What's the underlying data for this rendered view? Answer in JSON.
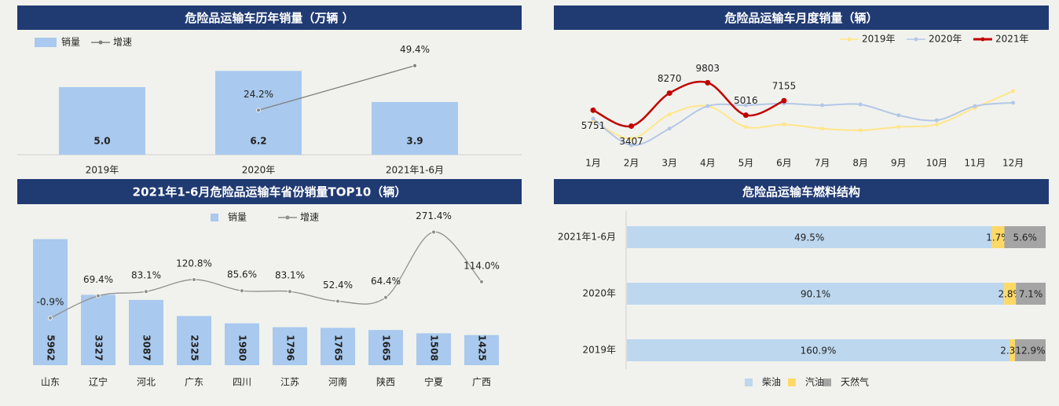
{
  "chart_data": [
    {
      "type": "combo",
      "title": "危险品运输车历年销量（万辆 ）",
      "categories": [
        "2019年",
        "2020年",
        "2021年1-6月"
      ],
      "series": [
        {
          "name": "销量",
          "type": "bar",
          "color": "#a9c9ee",
          "values": [
            5.0,
            6.2,
            3.9
          ],
          "value_labels": [
            "5.0",
            "6.2",
            "3.9"
          ]
        },
        {
          "name": "增速",
          "type": "line",
          "axis": "y2",
          "color": "#808080",
          "values": [
            null,
            24.2,
            49.4
          ],
          "value_labels": [
            null,
            "24.2%",
            "49.4%"
          ]
        }
      ],
      "ylim": [
        0,
        6.8
      ],
      "y2lim": [
        -1,
        51
      ]
    },
    {
      "type": "line",
      "title": "危险品运输车月度销量（辆）",
      "categories": [
        "1月",
        "2月",
        "3月",
        "4月",
        "5月",
        "6月",
        "7月",
        "8月",
        "9月",
        "10月",
        "11月",
        "12月"
      ],
      "series": [
        {
          "name": "2019年",
          "color": "#ffe68a",
          "values": [
            4268,
            1562,
            5129,
            6359,
            3284,
            3653,
            3038,
            2792,
            3284,
            3653,
            6113,
            8573
          ]
        },
        {
          "name": "2020年",
          "color": "#b4c7e7",
          "values": [
            4514,
            600,
            3038,
            6359,
            6482,
            6728,
            6482,
            6605,
            5006,
            4268,
            6359,
            6851
          ]
        },
        {
          "name": "2021年",
          "color": "#c00000",
          "values": [
            5751,
            3407,
            8270,
            9803,
            5016,
            7155,
            null,
            null,
            null,
            null,
            null,
            null
          ]
        }
      ],
      "ylim": [
        0,
        11000
      ]
    },
    {
      "type": "combo",
      "title": "2021年1-6月危险品运输车省份销量TOP10（辆）",
      "categories": [
        "山东",
        "辽宁",
        "河北",
        "广东",
        "四川",
        "江苏",
        "河南",
        "陕西",
        "宁夏",
        "广西"
      ],
      "series": [
        {
          "name": "销量",
          "type": "bar",
          "color": "#a9c9ee",
          "values": [
            5962,
            3327,
            3087,
            2325,
            1980,
            1796,
            1765,
            1665,
            1508,
            1425
          ]
        },
        {
          "name": "增速",
          "type": "line",
          "axis": "y2",
          "color": "#909090",
          "values": [
            -0.9,
            69.4,
            83.1,
            120.8,
            85.6,
            83.1,
            52.4,
            64.4,
            271.4,
            114.0
          ],
          "value_labels": [
            "-0.9%",
            "69.4%",
            "83.1%",
            "120.8%",
            "85.6%",
            "83.1%",
            "52.4%",
            "64.4%",
            "271.4%",
            "114.0%"
          ]
        }
      ],
      "ylim": [
        0,
        6500
      ],
      "y2lim": [
        -150,
        285
      ]
    },
    {
      "type": "hbar",
      "stacked": true,
      "title": "危险品运输车燃料结构",
      "categories": [
        "2021年1-6月",
        "2020年",
        "2019年"
      ],
      "series": [
        {
          "name": "柴油",
          "color": "#bdd7ee",
          "values": [
            49.5,
            90.1,
            160.9
          ],
          "value_labels": [
            "49.5%",
            "90.1%",
            "160.9%"
          ]
        },
        {
          "name": "汽油",
          "color": "#ffd966",
          "values": [
            1.7,
            2.8,
            2.3
          ],
          "value_labels": [
            "1.7%",
            "2.8%",
            "2.3%"
          ]
        },
        {
          "name": "天然气",
          "color": "#a5a5a5",
          "values": [
            5.6,
            7.1,
            12.9
          ],
          "value_labels": [
            "5.6%",
            "7.1%",
            "12.9%"
          ]
        }
      ]
    }
  ]
}
